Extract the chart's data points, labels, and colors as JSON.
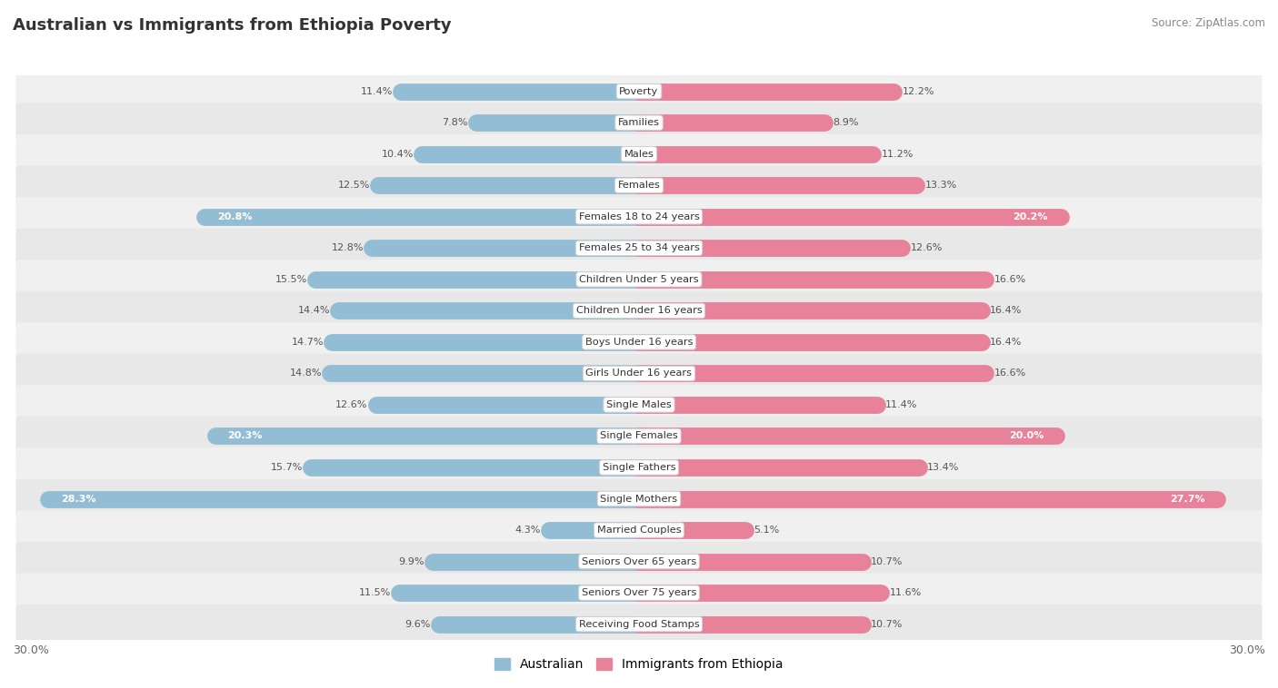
{
  "title": "Australian vs Immigrants from Ethiopia Poverty",
  "source": "Source: ZipAtlas.com",
  "categories": [
    "Poverty",
    "Families",
    "Males",
    "Females",
    "Females 18 to 24 years",
    "Females 25 to 34 years",
    "Children Under 5 years",
    "Children Under 16 years",
    "Boys Under 16 years",
    "Girls Under 16 years",
    "Single Males",
    "Single Females",
    "Single Fathers",
    "Single Mothers",
    "Married Couples",
    "Seniors Over 65 years",
    "Seniors Over 75 years",
    "Receiving Food Stamps"
  ],
  "australian": [
    11.4,
    7.8,
    10.4,
    12.5,
    20.8,
    12.8,
    15.5,
    14.4,
    14.7,
    14.8,
    12.6,
    20.3,
    15.7,
    28.3,
    4.3,
    9.9,
    11.5,
    9.6
  ],
  "ethiopia": [
    12.2,
    8.9,
    11.2,
    13.3,
    20.2,
    12.6,
    16.6,
    16.4,
    16.4,
    16.6,
    11.4,
    20.0,
    13.4,
    27.7,
    5.1,
    10.7,
    11.6,
    10.7
  ],
  "aus_color": "#93bdd4",
  "eth_color": "#e8829a",
  "row_colors": [
    "#f0f0f0",
    "#e8e8e8"
  ],
  "x_max": 30.0,
  "bar_height": 0.62,
  "label_threshold": 17.0,
  "legend_australian": "Australian",
  "legend_ethiopia": "Immigrants from Ethiopia"
}
